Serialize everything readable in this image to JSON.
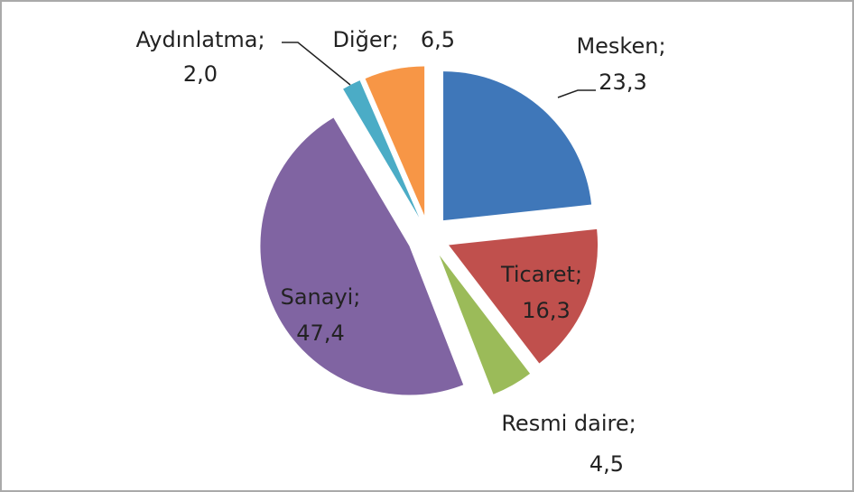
{
  "chart_data": {
    "type": "pie",
    "categories": [
      "Mesken;",
      "Ticaret;",
      "Resmi daire;",
      "Sanayi;",
      "Aydınlatma;",
      "Diğer;"
    ],
    "values": [
      23.3,
      16.3,
      4.5,
      47.4,
      2.0,
      6.5
    ],
    "value_labels": [
      "23,3",
      "16,3",
      "4,5",
      "47,4",
      "2,0",
      "6,5"
    ],
    "colors": [
      "#3f77b9",
      "#c0504d",
      "#9bbb59",
      "#8064a2",
      "#4bacc6",
      "#f79646"
    ]
  }
}
